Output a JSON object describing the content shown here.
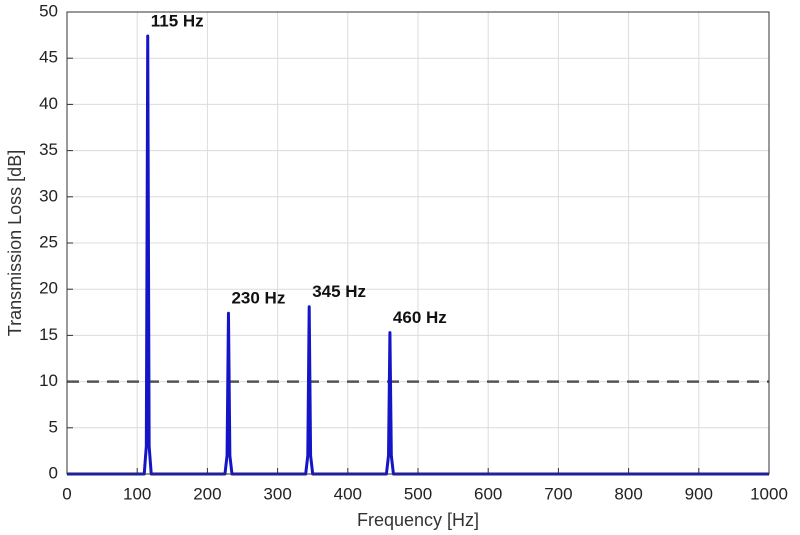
{
  "chart_data": {
    "type": "line",
    "x_label": "Frequency [Hz]",
    "y_label": "Transmission Loss [dB]",
    "x": [
      0,
      110,
      113,
      115,
      117,
      120,
      225,
      228,
      230,
      232,
      235,
      340,
      343,
      345,
      347,
      350,
      455,
      458,
      460,
      462,
      465,
      1000
    ],
    "series": [
      {
        "color": "#1515c8",
        "values": [
          0,
          0,
          3,
          47.4,
          3,
          0,
          0,
          2,
          17.4,
          2,
          0,
          0,
          2,
          18.1,
          2,
          0,
          0,
          2,
          15.3,
          2,
          0,
          0
        ]
      }
    ],
    "annotations": [
      "115 Hz",
      "230 Hz",
      "345 Hz",
      "460 Hz"
    ],
    "reference_line": {
      "y": 10,
      "color": "#555555",
      "dashed": true
    },
    "xlim": [
      0,
      1000
    ],
    "ylim": [
      0,
      50
    ],
    "xticks": [
      0,
      100,
      200,
      300,
      400,
      500,
      600,
      700,
      800,
      900,
      1000
    ],
    "yticks": [
      0,
      5,
      10,
      15,
      20,
      25,
      30,
      35,
      40,
      45,
      50
    ],
    "grid": true
  }
}
